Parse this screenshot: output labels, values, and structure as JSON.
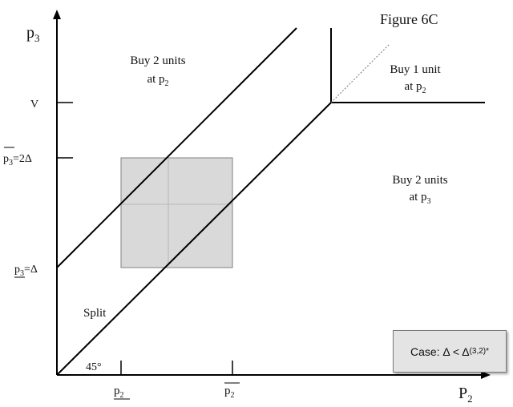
{
  "figure_title": "Figure  6C",
  "axes": {
    "y_axis": {
      "symbol": "p",
      "subscript": "3"
    },
    "x_axis": {
      "symbol": "P",
      "subscript": "2"
    }
  },
  "y_ticks": {
    "v": "V",
    "upper": {
      "symbol": "p",
      "subscript": "3",
      "suffix": "=2Δ"
    },
    "lower": {
      "symbol": "p",
      "subscript": "3",
      "suffix": "=Δ"
    }
  },
  "x_ticks": {
    "lower": {
      "symbol": "p",
      "subscript": "2"
    },
    "upper": {
      "symbol": "p",
      "subscript": "2"
    }
  },
  "regions": {
    "top_left": {
      "line1": "Buy 2 units",
      "line2_prefix": "at p",
      "line2_sub": "2"
    },
    "top_right": {
      "line1": "Buy 1 unit",
      "line2_prefix": "at p",
      "line2_sub": "2"
    },
    "right": {
      "line1": "Buy 2 units",
      "line2_prefix": "at p",
      "line2_sub": "3"
    },
    "split": "Split"
  },
  "angle_label": "45°",
  "case_box": {
    "prefix": "Case: Δ < Δ",
    "subscript": "(3,2)",
    "superscript": "*"
  },
  "colors": {
    "line": "#000000",
    "shaded_square": "#d9d9d9",
    "square_border": "#808080"
  }
}
